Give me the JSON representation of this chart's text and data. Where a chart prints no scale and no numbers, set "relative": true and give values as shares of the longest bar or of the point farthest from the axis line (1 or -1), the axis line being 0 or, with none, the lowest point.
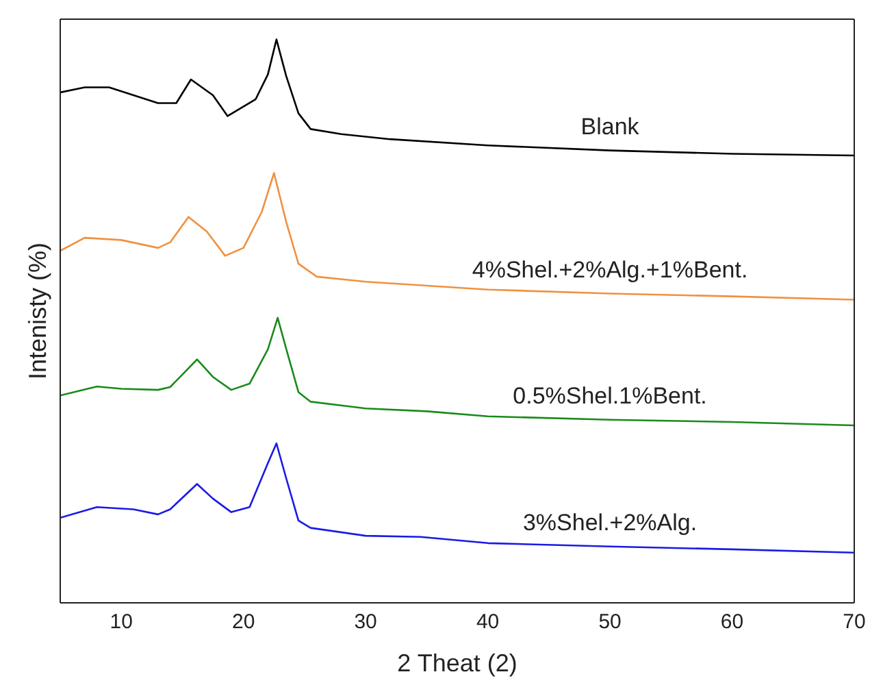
{
  "chart_data": {
    "type": "line",
    "relative": true,
    "xlabel": "2 Theat (2)",
    "ylabel": "Intenisty (%)",
    "xlim": [
      5,
      70
    ],
    "xticks": [
      10,
      20,
      30,
      40,
      50,
      60,
      70
    ],
    "legend": false,
    "marker": "none",
    "line_style": "solid",
    "tick_labels": "x",
    "series": [
      {
        "name": "Blank",
        "color": "#000000",
        "x": [
          5,
          7,
          9,
          11,
          13,
          14.5,
          15.7,
          17.5,
          18.7,
          21,
          22,
          22.7,
          23.5,
          24.5,
          25.5,
          28,
          32,
          40,
          50,
          60,
          70
        ],
        "values": [
          0.906,
          0.915,
          0.915,
          0.901,
          0.887,
          0.887,
          0.929,
          0.901,
          0.864,
          0.894,
          0.938,
          1,
          0.935,
          0.869,
          0.841,
          0.832,
          0.823,
          0.812,
          0.803,
          0.797,
          0.794
        ]
      },
      {
        "name": "4%Shel.+2%Alg.+1%Bent.",
        "color": "#f0913f",
        "x": [
          5,
          7,
          10,
          13,
          14,
          15.5,
          17,
          18.5,
          20,
          21.5,
          22.5,
          23.5,
          24.5,
          26,
          30,
          40,
          50,
          60,
          70
        ],
        "values": [
          0.625,
          0.648,
          0.644,
          0.63,
          0.64,
          0.685,
          0.659,
          0.616,
          0.63,
          0.694,
          0.763,
          0.676,
          0.602,
          0.579,
          0.57,
          0.556,
          0.549,
          0.544,
          0.538
        ]
      },
      {
        "name": "0.5%Shel.1%Bent.",
        "color": "#1a8a1a",
        "x": [
          5,
          8,
          10,
          13,
          14,
          16.2,
          17.5,
          19,
          20.5,
          22,
          22.8,
          23.6,
          24.5,
          25.5,
          30,
          35,
          40,
          50,
          60,
          70
        ],
        "values": [
          0.368,
          0.384,
          0.38,
          0.378,
          0.383,
          0.432,
          0.401,
          0.378,
          0.389,
          0.45,
          0.506,
          0.443,
          0.374,
          0.357,
          0.345,
          0.34,
          0.331,
          0.325,
          0.321,
          0.315
        ]
      },
      {
        "name": "3%Shel.+2%Alg.",
        "color": "#1a1ae6",
        "x": [
          5,
          8,
          11,
          13,
          14,
          16.2,
          17.5,
          19,
          20.5,
          22,
          22.7,
          23.5,
          24.5,
          25.5,
          30,
          34.5,
          40,
          50,
          60,
          70
        ],
        "values": [
          0.151,
          0.17,
          0.166,
          0.157,
          0.166,
          0.211,
          0.185,
          0.161,
          0.17,
          0.248,
          0.283,
          0.221,
          0.146,
          0.133,
          0.119,
          0.117,
          0.106,
          0.1,
          0.095,
          0.089
        ]
      }
    ]
  }
}
